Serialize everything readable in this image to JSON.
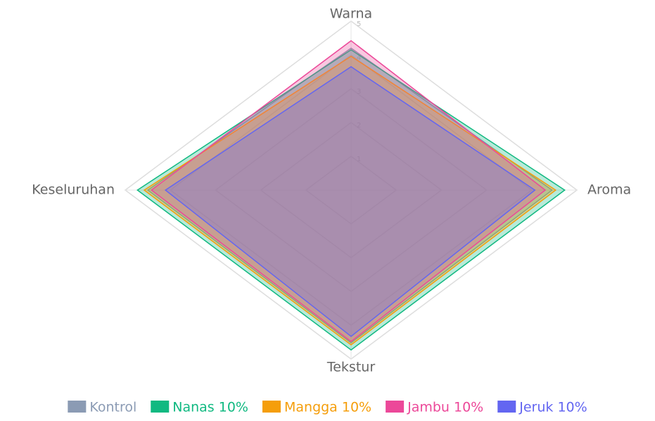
{
  "chart_data": {
    "type": "radar",
    "categories": [
      "Warna",
      "Aroma",
      "Tekstur",
      "Keseluruhan"
    ],
    "ylim": [
      0,
      5
    ],
    "yticks": [
      1,
      2,
      3,
      4,
      5
    ],
    "grid": true,
    "legend": "bottom",
    "series": [
      {
        "name": "Kontrol",
        "color": "#8b9bb4",
        "values": [
          4.2,
          4.45,
          4.52,
          4.5
        ]
      },
      {
        "name": "Nanas 10%",
        "color": "#10b981",
        "values": [
          4.15,
          4.73,
          4.73,
          4.73
        ]
      },
      {
        "name": "Mangga 10%",
        "color": "#f59e0b",
        "values": [
          3.96,
          4.53,
          4.58,
          4.58
        ]
      },
      {
        "name": "Jambu 10%",
        "color": "#ec4899",
        "values": [
          4.42,
          4.3,
          4.48,
          4.42
        ]
      },
      {
        "name": "Jeruk 10%",
        "color": "#6366f1",
        "values": [
          3.65,
          4.07,
          4.33,
          4.11
        ]
      }
    ]
  }
}
